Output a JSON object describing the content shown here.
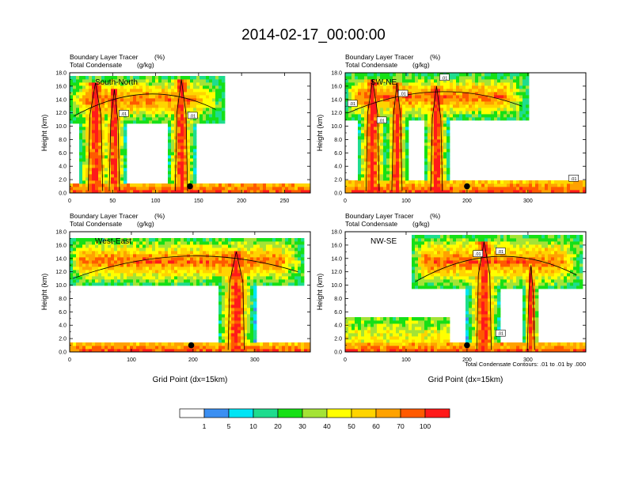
{
  "page_title": "2014-02-17_00:00:00",
  "colors": {
    "levels": [
      "#ffffff",
      "#3b8ff2",
      "#00e5f5",
      "#1edc8e",
      "#16e016",
      "#a4e336",
      "#ffff00",
      "#ffd400",
      "#ffa200",
      "#ff5a00",
      "#ff1a1a"
    ],
    "contour": "#000000",
    "marker": "#000000"
  },
  "colorbar": {
    "labels": [
      "1",
      "5",
      "10",
      "20",
      "30",
      "40",
      "50",
      "60",
      "70",
      "100"
    ]
  },
  "footnote": "Total Condensate Contours: .01 to .01 by .000",
  "chart_data": [
    {
      "type": "heatmap",
      "title": "South-North",
      "subtitle_left1": "Boundary Layer Tracer",
      "subtitle_units1": "(%)",
      "subtitle_left2": "Total Condensate",
      "subtitle_units2": "(g/kg)",
      "xlabel": "",
      "ylabel": "Height (km)",
      "xlim": [
        0,
        280
      ],
      "ylim": [
        0,
        18
      ],
      "xticks": [
        0,
        50,
        100,
        150,
        200,
        250
      ],
      "yticks": [
        "0.0",
        "2.0",
        "4.0",
        "6.0",
        "8.0",
        "10.0",
        "12.0",
        "14.0",
        "16.0",
        "18.0"
      ],
      "marker": {
        "x": 140,
        "y": 1.0
      },
      "contour_labels": [
        {
          "text": ".01",
          "x": 63,
          "y": 11.8
        },
        {
          "text": ".01",
          "x": 143,
          "y": 11.5
        }
      ],
      "anvil": {
        "x0": 0,
        "x1": 180,
        "ybot": 10.5,
        "ytop": 17.6
      },
      "cores": [
        {
          "x": 30,
          "w": 14,
          "top": 16.5
        },
        {
          "x": 52,
          "w": 10,
          "top": 15.5
        },
        {
          "x": 130,
          "w": 12,
          "top": 17.0
        }
      ],
      "boundary_layer": {
        "top": 1.6
      }
    },
    {
      "type": "heatmap",
      "title": "SW-NE",
      "subtitle_left1": "Boundary Layer Tracer",
      "subtitle_units1": "(%)",
      "subtitle_left2": "Total Condensate",
      "subtitle_units2": "(g/kg)",
      "xlabel": "",
      "ylabel": "Height (km)",
      "xlim": [
        0,
        395
      ],
      "ylim": [
        0,
        18
      ],
      "xticks": [
        0,
        100,
        200,
        300
      ],
      "yticks": [
        "0.0",
        "2.0",
        "4.0",
        "6.0",
        "8.0",
        "10.0",
        "12.0",
        "14.0",
        "16.0",
        "18.0"
      ],
      "marker": {
        "x": 200,
        "y": 1.0
      },
      "contour_labels": [
        {
          "text": ".01",
          "x": 12,
          "y": 13.3
        },
        {
          "text": ".01",
          "x": 60,
          "y": 10.8
        },
        {
          "text": ".01",
          "x": 95,
          "y": 14.8
        },
        {
          "text": ".01",
          "x": 163,
          "y": 17.2
        },
        {
          "text": ".01",
          "x": 375,
          "y": 2.1
        }
      ],
      "anvil": {
        "x0": 0,
        "x1": 300,
        "ybot": 11.0,
        "ytop": 17.8
      },
      "cores": [
        {
          "x": 45,
          "w": 18,
          "top": 17.0
        },
        {
          "x": 85,
          "w": 14,
          "top": 16.5
        },
        {
          "x": 150,
          "w": 16,
          "top": 16.0
        }
      ],
      "boundary_layer": {
        "top": 1.8
      }
    },
    {
      "type": "heatmap",
      "title": "West-East",
      "subtitle_left1": "Boundary Layer Tracer",
      "subtitle_units1": "(%)",
      "subtitle_left2": "Total Condensate",
      "subtitle_units2": "(g/kg)",
      "xlabel": "Grid Point (dx=15km)",
      "ylabel": "Height (km)",
      "xlim": [
        0,
        390
      ],
      "ylim": [
        0,
        18
      ],
      "xticks": [
        0,
        100,
        200,
        300
      ],
      "yticks": [
        "0.0",
        "2.0",
        "4.0",
        "6.0",
        "8.0",
        "10.0",
        "12.0",
        "14.0",
        "16.0",
        "18.0"
      ],
      "marker": {
        "x": 197,
        "y": 1.0
      },
      "contour_labels": [],
      "anvil": {
        "x0": 0,
        "x1": 380,
        "ybot": 10.0,
        "ytop": 17.2
      },
      "cores": [
        {
          "x": 270,
          "w": 22,
          "top": 15.0
        }
      ],
      "boundary_layer": {
        "top": 1.4
      }
    },
    {
      "type": "heatmap",
      "title": "NW-SE",
      "subtitle_left1": "Boundary Layer Tracer",
      "subtitle_units1": "(%)",
      "subtitle_left2": "Total Condensate",
      "subtitle_units2": "(g/kg)",
      "xlabel": "Grid Point (dx=15km)",
      "ylabel": "Height (km)",
      "xlim": [
        0,
        395
      ],
      "ylim": [
        0,
        18
      ],
      "xticks": [
        0,
        100,
        200,
        300
      ],
      "yticks": [
        "0.0",
        "2.0",
        "4.0",
        "6.0",
        "8.0",
        "10.0",
        "12.0",
        "14.0",
        "16.0",
        "18.0"
      ],
      "marker": {
        "x": 200,
        "y": 1.0
      },
      "contour_labels": [
        {
          "text": ".01",
          "x": 218,
          "y": 14.6
        },
        {
          "text": ".01",
          "x": 255,
          "y": 15.0
        },
        {
          "text": ".01",
          "x": 255,
          "y": 2.7
        }
      ],
      "anvil": {
        "x0": 110,
        "x1": 390,
        "ybot": 9.5,
        "ytop": 17.6
      },
      "cores": [
        {
          "x": 228,
          "w": 20,
          "top": 16.5
        },
        {
          "x": 305,
          "w": 10,
          "top": 13.0
        }
      ],
      "boundary_layer": {
        "top": 1.5
      },
      "low_layer": {
        "x0": 0,
        "x1": 170,
        "top": 5.0
      }
    }
  ]
}
